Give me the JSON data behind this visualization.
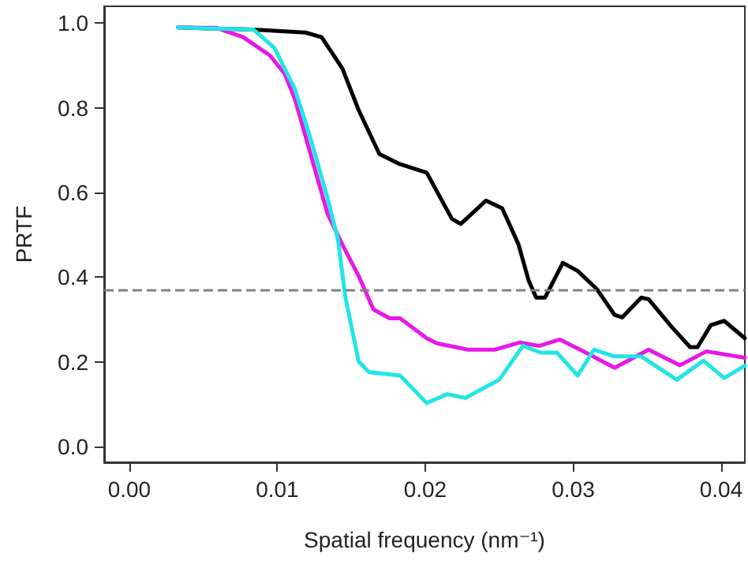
{
  "chart_data": {
    "type": "line",
    "xlabel": "Spatial frequency (nm⁻¹)",
    "ylabel": "PRTF",
    "marker": "none",
    "grid": false,
    "xlim": [
      -0.0017,
      0.0416
    ],
    "xticks": [
      {
        "value": 0,
        "label": "0.00"
      },
      {
        "value": 0.01,
        "label": "0.01"
      },
      {
        "value": 0.02,
        "label": "0.02"
      },
      {
        "value": 0.03,
        "label": "0.03"
      },
      {
        "value": 0.04,
        "label": "0.04"
      }
    ],
    "ylim": [
      -0.037,
      1.04
    ],
    "yticks": [
      {
        "value": 0,
        "label": "0.0"
      },
      0.2,
      0.4,
      0.6,
      0.8,
      {
        "value": 1,
        "label": "1.0"
      }
    ],
    "ref_lines": [
      {
        "axis": "y",
        "value": 0.368,
        "color": "#808080",
        "line_style": "dashed"
      }
    ],
    "series": [
      {
        "color": "#000000",
        "x": [
          0.0033,
          0.0084,
          0.0119,
          0.013,
          0.0144,
          0.0155,
          0.0169,
          0.0183,
          0.0201,
          0.0218,
          0.0224,
          0.0241,
          0.0252,
          0.0263,
          0.027,
          0.0275,
          0.0281,
          0.0293,
          0.0303,
          0.0316,
          0.0328,
          0.0333,
          0.0346,
          0.0351,
          0.0367,
          0.0379,
          0.0384,
          0.0393,
          0.0402,
          0.0416
        ],
        "values": [
          0.99,
          0.985,
          0.978,
          0.967,
          0.893,
          0.795,
          0.691,
          0.667,
          0.647,
          0.538,
          0.526,
          0.581,
          0.563,
          0.478,
          0.391,
          0.352,
          0.352,
          0.434,
          0.415,
          0.372,
          0.311,
          0.305,
          0.352,
          0.348,
          0.281,
          0.235,
          0.235,
          0.287,
          0.297,
          0.256
        ]
      },
      {
        "color": "#e619e6",
        "x": [
          0.0033,
          0.0059,
          0.0077,
          0.0095,
          0.0105,
          0.0112,
          0.0123,
          0.0134,
          0.0144,
          0.0155,
          0.0165,
          0.0176,
          0.0183,
          0.0201,
          0.0208,
          0.0229,
          0.0247,
          0.0264,
          0.0277,
          0.0291,
          0.0307,
          0.0328,
          0.0351,
          0.0372,
          0.039,
          0.0416
        ],
        "values": [
          0.99,
          0.989,
          0.967,
          0.924,
          0.881,
          0.82,
          0.685,
          0.55,
          0.477,
          0.403,
          0.324,
          0.303,
          0.303,
          0.256,
          0.244,
          0.229,
          0.229,
          0.246,
          0.238,
          0.253,
          0.225,
          0.186,
          0.229,
          0.192,
          0.225,
          0.21
        ]
      },
      {
        "color": "#22e5e5",
        "x": [
          0.0033,
          0.0084,
          0.0098,
          0.0112,
          0.0123,
          0.0134,
          0.0141,
          0.0146,
          0.0155,
          0.0162,
          0.0183,
          0.0201,
          0.0215,
          0.0227,
          0.025,
          0.0266,
          0.0278,
          0.0289,
          0.0303,
          0.0314,
          0.0328,
          0.0346,
          0.037,
          0.0388,
          0.0402,
          0.0416
        ],
        "values": [
          0.99,
          0.985,
          0.942,
          0.844,
          0.722,
          0.587,
          0.489,
          0.354,
          0.201,
          0.176,
          0.168,
          0.103,
          0.124,
          0.115,
          0.158,
          0.238,
          0.222,
          0.222,
          0.168,
          0.229,
          0.213,
          0.213,
          0.158,
          0.203,
          0.162,
          0.191
        ]
      }
    ]
  }
}
